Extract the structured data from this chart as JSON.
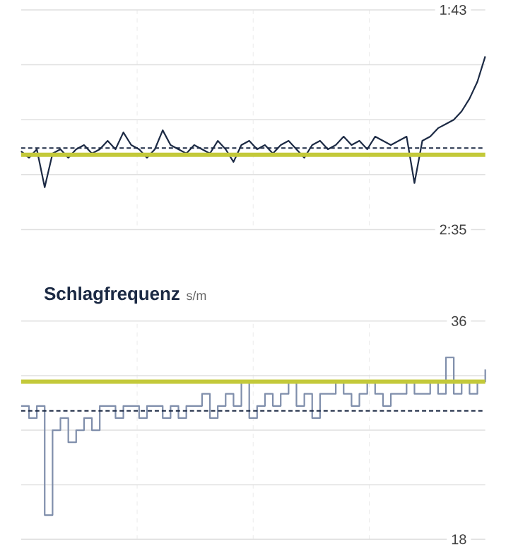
{
  "chart_data": [
    {
      "type": "line",
      "color": "#1c2a44",
      "categories": [
        null,
        null,
        null,
        null,
        null,
        null,
        null,
        null,
        null,
        null,
        null,
        null,
        null,
        null,
        null,
        null,
        null,
        null,
        null,
        null,
        null,
        null,
        null,
        null,
        null,
        null,
        null,
        null,
        null,
        null,
        null,
        null,
        null,
        null,
        null,
        null,
        null,
        null,
        null,
        null,
        null,
        null,
        null,
        null,
        null,
        null,
        null,
        null,
        null,
        null,
        null,
        null,
        null,
        null,
        null,
        null,
        null,
        null,
        null,
        null
      ],
      "values": [
        136.5,
        138,
        136,
        145,
        137,
        136,
        138,
        136,
        135,
        137,
        136,
        134,
        136,
        132,
        135,
        136,
        138,
        136,
        131.5,
        135,
        136,
        137,
        135,
        136,
        137,
        134,
        136,
        139,
        135,
        134,
        136,
        135,
        137,
        135,
        134,
        136,
        138,
        135,
        134,
        136,
        135,
        133,
        135,
        134,
        136,
        133,
        134,
        135,
        134,
        133,
        144,
        134,
        133,
        131,
        130,
        129,
        127,
        124,
        120,
        114
      ],
      "ylim": [
        155,
        103
      ],
      "yticks": [
        {
          "value": 103,
          "label": "1:43"
        },
        {
          "value": 116,
          "label": null
        },
        {
          "value": 129,
          "label": null
        },
        {
          "value": 142,
          "label": null
        },
        {
          "value": 155,
          "label": "2:35"
        }
      ],
      "ref_lines": [
        {
          "axis": "y",
          "value": 137.3,
          "color": "#c3c93a",
          "line_style": "solid"
        },
        {
          "axis": "y",
          "value": 135.7,
          "color": "#1c2a44",
          "line_style": "dashed"
        }
      ],
      "grid": true,
      "tick_labels": "y"
    },
    {
      "type": "step",
      "title": "Schlagfrequenz",
      "ylabel": "s/m",
      "color": "#7f8eab",
      "categories": [
        null,
        null,
        null,
        null,
        null,
        null,
        null,
        null,
        null,
        null,
        null,
        null,
        null,
        null,
        null,
        null,
        null,
        null,
        null,
        null,
        null,
        null,
        null,
        null,
        null,
        null,
        null,
        null,
        null,
        null,
        null,
        null,
        null,
        null,
        null,
        null,
        null,
        null,
        null,
        null,
        null,
        null,
        null,
        null,
        null,
        null,
        null,
        null,
        null,
        null,
        null,
        null,
        null,
        null,
        null,
        null,
        null,
        null,
        null,
        null
      ],
      "values": [
        29,
        28,
        29,
        20,
        27,
        28,
        26,
        27,
        28,
        27,
        29,
        29,
        28,
        29,
        29,
        28,
        29,
        29,
        28,
        29,
        28,
        29,
        29,
        30,
        28,
        29,
        30,
        29,
        31,
        28,
        29,
        30,
        29,
        30,
        31,
        29,
        30,
        28,
        30,
        30,
        31,
        30,
        29,
        30,
        31,
        30,
        29,
        30,
        30,
        31,
        30,
        30,
        31,
        30,
        33,
        30,
        31,
        30,
        31,
        32
      ],
      "ylim": [
        18,
        36
      ],
      "yticks": [
        36,
        {
          "value": 31.5,
          "label": null
        },
        {
          "value": 27,
          "label": null
        },
        {
          "value": 22.5,
          "label": null
        },
        18
      ],
      "ref_lines": [
        {
          "axis": "y",
          "value": 31,
          "color": "#c3c93a",
          "line_style": "solid"
        },
        {
          "axis": "y",
          "value": 28.6,
          "color": "#1c2a44",
          "line_style": "dashed"
        }
      ],
      "grid": true,
      "tick_labels": "y"
    }
  ]
}
